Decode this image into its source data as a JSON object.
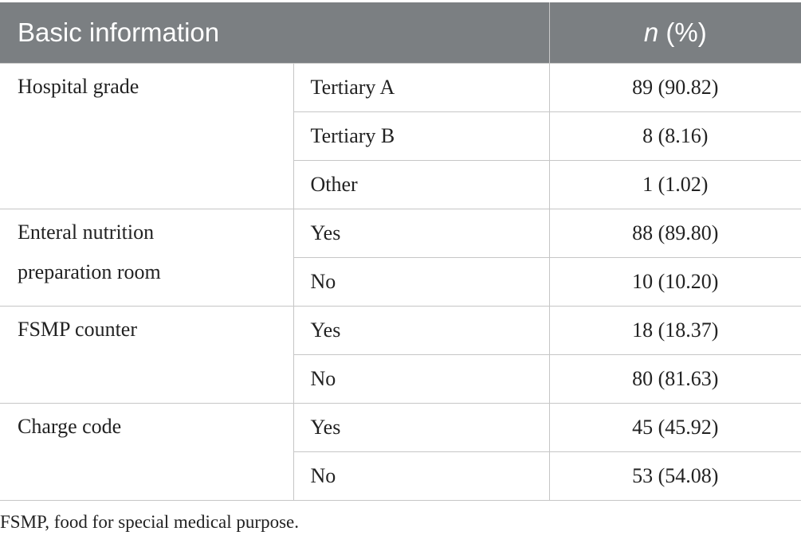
{
  "table": {
    "header": {
      "col1": "Basic information",
      "col2_italic": "n",
      "col2_rest": " (%)"
    },
    "groups": [
      {
        "label": "Hospital grade",
        "rows": [
          {
            "category": "Tertiary A",
            "value": "89 (90.82)"
          },
          {
            "category": "Tertiary B",
            "value": "8 (8.16)"
          },
          {
            "category": "Other",
            "value": "1 (1.02)"
          }
        ]
      },
      {
        "label_line1": "Enteral nutrition",
        "label_line2": "preparation room",
        "rows": [
          {
            "category": "Yes",
            "value": "88 (89.80)"
          },
          {
            "category": "No",
            "value": "10 (10.20)"
          }
        ]
      },
      {
        "label": "FSMP counter",
        "rows": [
          {
            "category": "Yes",
            "value": "18 (18.37)"
          },
          {
            "category": "No",
            "value": "80 (81.63)"
          }
        ]
      },
      {
        "label": "Charge code",
        "rows": [
          {
            "category": "Yes",
            "value": "45 (45.92)"
          },
          {
            "category": "No",
            "value": "53 (54.08)"
          }
        ]
      }
    ]
  },
  "footnote": "FSMP, food for special medical purpose.",
  "colors": {
    "header_bg": "#7b7f82",
    "header_text": "#ffffff",
    "border": "#c6c6c6",
    "text": "#222222"
  }
}
